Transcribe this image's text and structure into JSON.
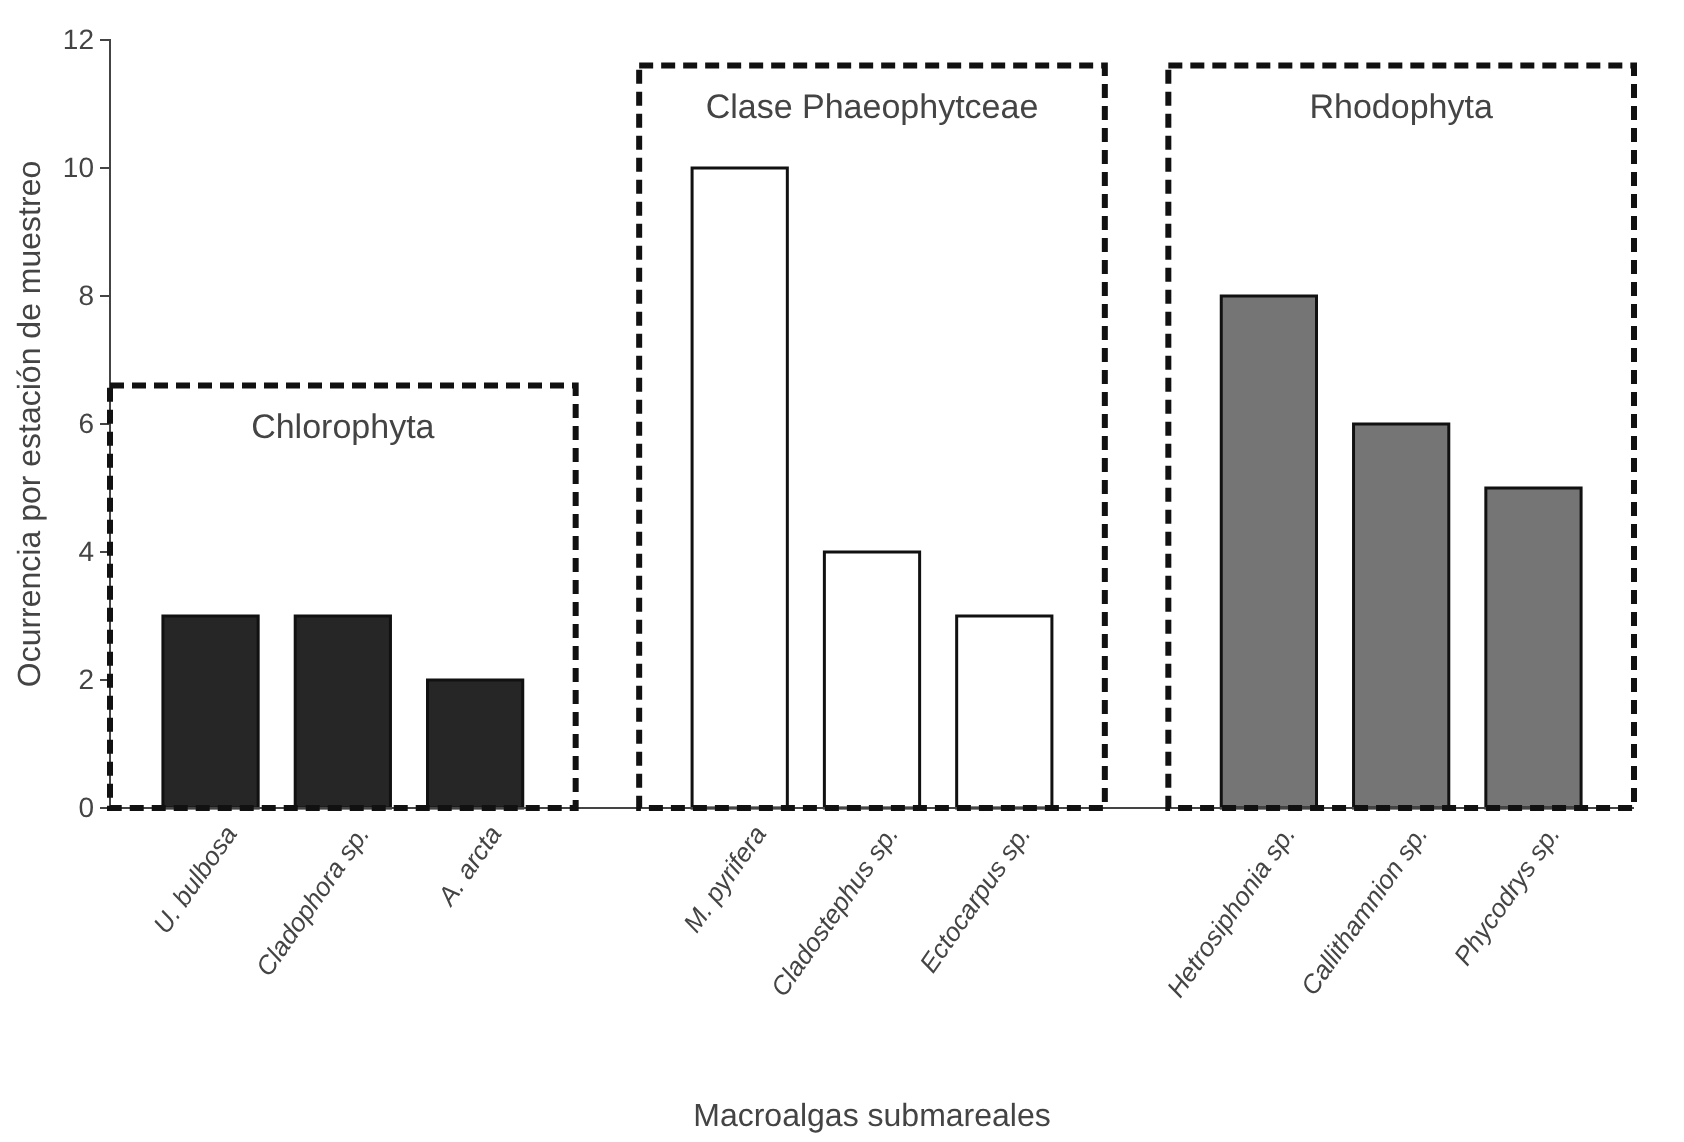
{
  "chart_data": {
    "type": "bar",
    "xlabel": "Macroalgas submareales",
    "ylabel": "Ocurrencia por estación de muestreo",
    "categories": [
      "U. bulbosa",
      "Cladophora sp.",
      "A. arcta",
      null,
      "M. pyrifera",
      "Cladostephus sp.",
      "Ectocarpus sp.",
      null,
      "Hetrosiphonia sp.",
      "Callithamnion sp.",
      "Phycodrys sp."
    ],
    "values": [
      3,
      3,
      2,
      null,
      10,
      4,
      3,
      null,
      8,
      6,
      5
    ],
    "colors": [
      "#262626",
      "#262626",
      "#262626",
      null,
      "#ffffff",
      "#ffffff",
      "#ffffff",
      null,
      "#757575",
      "#757575",
      "#757575"
    ],
    "ylim": [
      0,
      12
    ],
    "yticks": [
      0,
      2,
      4,
      6,
      8,
      10,
      12
    ],
    "grid": false,
    "annotations": [
      "Chlorophyta",
      "Clase Phaeophytceae",
      "Rhodophyta"
    ]
  }
}
